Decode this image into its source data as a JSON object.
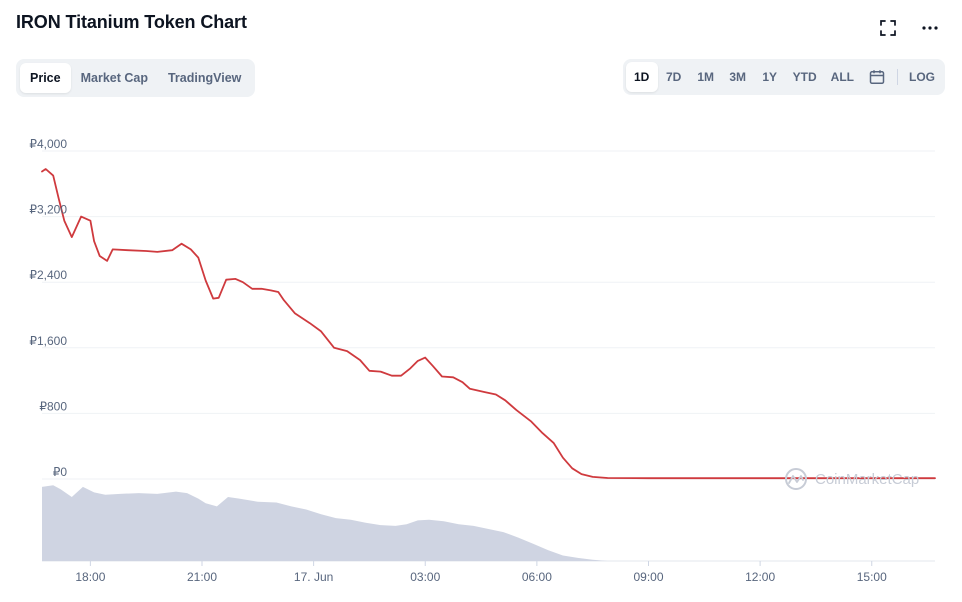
{
  "header": {
    "title": "IRON Titanium Token Chart"
  },
  "tabs": [
    {
      "label": "Price",
      "active": true
    },
    {
      "label": "Market Cap",
      "active": false
    },
    {
      "label": "TradingView",
      "active": false
    }
  ],
  "ranges": [
    {
      "label": "1D",
      "active": true
    },
    {
      "label": "7D",
      "active": false
    },
    {
      "label": "1M",
      "active": false
    },
    {
      "label": "3M",
      "active": false
    },
    {
      "label": "1Y",
      "active": false
    },
    {
      "label": "YTD",
      "active": false
    },
    {
      "label": "ALL",
      "active": false
    }
  ],
  "log_label": "LOG",
  "icons": {
    "fullscreen": "fullscreen-icon",
    "more": "more-icon",
    "calendar": "calendar-icon"
  },
  "colors": {
    "price_line": "#cf3a3e",
    "volume": "#cfd4e2",
    "grid": "#eff2f5"
  },
  "watermark": "CoinMarketCap",
  "chart_data": {
    "type": "line",
    "title": "IRON Titanium Token Chart",
    "series_name": "Price",
    "y_ticks": [
      "₽0",
      "₽800",
      "₽1,600",
      "₽2,400",
      "₽3,200",
      "₽4,000"
    ],
    "y_tick_values": [
      0,
      800,
      1600,
      2400,
      3200,
      4000
    ],
    "ylim": [
      0,
      4000
    ],
    "x_ticks": [
      "18:00",
      "21:00",
      "17. Jun",
      "03:00",
      "06:00",
      "09:00",
      "12:00",
      "15:00"
    ],
    "x_tick_hours": [
      18,
      21,
      24,
      27,
      30,
      33,
      36,
      39
    ],
    "xlim_hours": [
      16.7,
      40.7
    ],
    "grid": true,
    "price_points": [
      [
        16.7,
        3750
      ],
      [
        16.8,
        3780
      ],
      [
        17.0,
        3700
      ],
      [
        17.15,
        3420
      ],
      [
        17.3,
        3150
      ],
      [
        17.5,
        2950
      ],
      [
        17.75,
        3200
      ],
      [
        18.0,
        3150
      ],
      [
        18.1,
        2900
      ],
      [
        18.25,
        2720
      ],
      [
        18.45,
        2660
      ],
      [
        18.6,
        2800
      ],
      [
        19.0,
        2790
      ],
      [
        19.5,
        2780
      ],
      [
        19.8,
        2770
      ],
      [
        20.2,
        2790
      ],
      [
        20.45,
        2870
      ],
      [
        20.7,
        2800
      ],
      [
        20.9,
        2700
      ],
      [
        21.1,
        2420
      ],
      [
        21.3,
        2200
      ],
      [
        21.45,
        2210
      ],
      [
        21.65,
        2430
      ],
      [
        21.9,
        2440
      ],
      [
        22.1,
        2400
      ],
      [
        22.35,
        2320
      ],
      [
        22.6,
        2320
      ],
      [
        22.85,
        2300
      ],
      [
        23.05,
        2280
      ],
      [
        23.2,
        2180
      ],
      [
        23.5,
        2020
      ],
      [
        23.9,
        1900
      ],
      [
        24.2,
        1800
      ],
      [
        24.55,
        1600
      ],
      [
        24.9,
        1560
      ],
      [
        25.25,
        1450
      ],
      [
        25.5,
        1320
      ],
      [
        25.8,
        1310
      ],
      [
        26.1,
        1260
      ],
      [
        26.35,
        1260
      ],
      [
        26.6,
        1350
      ],
      [
        26.8,
        1440
      ],
      [
        27.0,
        1480
      ],
      [
        27.2,
        1380
      ],
      [
        27.45,
        1250
      ],
      [
        27.75,
        1240
      ],
      [
        28.0,
        1180
      ],
      [
        28.2,
        1100
      ],
      [
        28.6,
        1060
      ],
      [
        28.9,
        1030
      ],
      [
        29.15,
        960
      ],
      [
        29.45,
        840
      ],
      [
        29.85,
        700
      ],
      [
        30.15,
        560
      ],
      [
        30.45,
        440
      ],
      [
        30.7,
        260
      ],
      [
        30.95,
        130
      ],
      [
        31.2,
        60
      ],
      [
        31.5,
        25
      ],
      [
        31.9,
        12
      ],
      [
        33.0,
        10
      ],
      [
        36.0,
        10
      ],
      [
        39.0,
        10
      ],
      [
        40.7,
        10
      ]
    ],
    "volume_points": [
      [
        16.7,
        0.95
      ],
      [
        17.0,
        0.97
      ],
      [
        17.2,
        0.92
      ],
      [
        17.5,
        0.82
      ],
      [
        17.8,
        0.95
      ],
      [
        18.1,
        0.88
      ],
      [
        18.4,
        0.85
      ],
      [
        18.8,
        0.86
      ],
      [
        19.3,
        0.87
      ],
      [
        19.8,
        0.86
      ],
      [
        20.3,
        0.89
      ],
      [
        20.6,
        0.87
      ],
      [
        20.9,
        0.8
      ],
      [
        21.1,
        0.74
      ],
      [
        21.4,
        0.7
      ],
      [
        21.7,
        0.82
      ],
      [
        22.0,
        0.8
      ],
      [
        22.5,
        0.76
      ],
      [
        23.0,
        0.75
      ],
      [
        23.4,
        0.7
      ],
      [
        23.8,
        0.66
      ],
      [
        24.2,
        0.6
      ],
      [
        24.6,
        0.55
      ],
      [
        25.0,
        0.53
      ],
      [
        25.4,
        0.49
      ],
      [
        25.8,
        0.46
      ],
      [
        26.2,
        0.45
      ],
      [
        26.5,
        0.47
      ],
      [
        26.8,
        0.52
      ],
      [
        27.1,
        0.53
      ],
      [
        27.5,
        0.51
      ],
      [
        27.9,
        0.47
      ],
      [
        28.3,
        0.45
      ],
      [
        28.7,
        0.41
      ],
      [
        29.1,
        0.37
      ],
      [
        29.5,
        0.3
      ],
      [
        29.9,
        0.22
      ],
      [
        30.3,
        0.14
      ],
      [
        30.7,
        0.07
      ],
      [
        31.1,
        0.04
      ],
      [
        31.5,
        0.015
      ],
      [
        31.9,
        0.0
      ]
    ]
  }
}
